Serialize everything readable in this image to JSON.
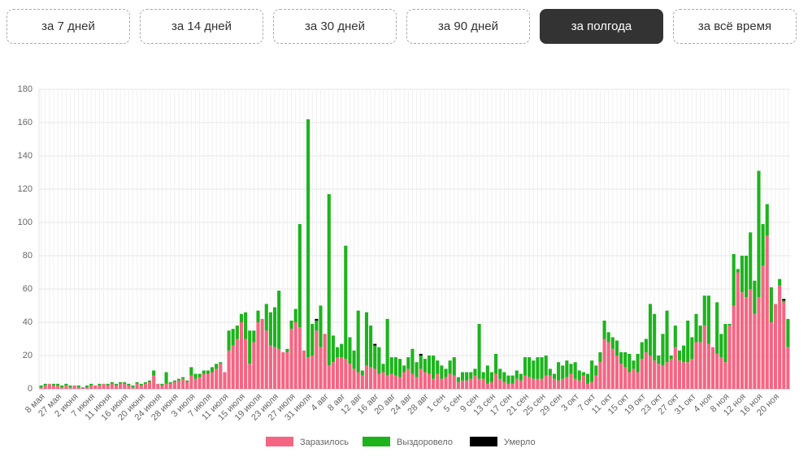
{
  "buttons": [
    "за 7 дней",
    "за 14 дней",
    "за 30 дней",
    "за 90 дней",
    "за полгода",
    "за всё время"
  ],
  "active_button": 4,
  "chart_data": {
    "type": "stacked_bar",
    "categories": [
      "8 мая",
      null,
      null,
      null,
      "27 мая",
      null,
      null,
      null,
      "2 июня",
      null,
      null,
      null,
      "7 июня",
      null,
      null,
      null,
      "11 июня",
      null,
      null,
      null,
      "16 июня",
      null,
      null,
      null,
      "20 июня",
      null,
      null,
      null,
      "24 июня",
      null,
      null,
      null,
      "28 июня",
      null,
      null,
      null,
      "3 июля",
      null,
      null,
      null,
      "7 июля",
      null,
      null,
      null,
      "11 июля",
      null,
      null,
      null,
      "15 июля",
      null,
      null,
      null,
      "19 июля",
      null,
      null,
      null,
      "23 июля",
      null,
      null,
      null,
      "27 июля",
      null,
      null,
      null,
      "31 июля",
      null,
      null,
      null,
      "4 авг",
      null,
      null,
      null,
      "8 авг",
      null,
      null,
      null,
      "12 авг",
      null,
      null,
      null,
      "16 авг",
      null,
      null,
      null,
      "20 авг",
      null,
      null,
      null,
      "24 авг",
      null,
      null,
      null,
      "28 авг",
      null,
      null,
      null,
      "1 сен",
      null,
      null,
      null,
      "5 сен",
      null,
      null,
      null,
      "9 сен",
      null,
      null,
      null,
      "13 сен",
      null,
      null,
      null,
      "17 сен",
      null,
      null,
      null,
      "21 сен",
      null,
      null,
      null,
      "25 сен",
      null,
      null,
      null,
      "29 сен",
      null,
      null,
      null,
      "3 окт",
      null,
      null,
      null,
      "7 окт",
      null,
      null,
      null,
      "11 окт",
      null,
      null,
      null,
      "15 окт",
      null,
      null,
      null,
      "19 окт",
      null,
      null,
      null,
      "23 окт",
      null,
      null,
      null,
      "27 окт",
      null,
      null,
      null,
      "31 окт",
      null,
      null,
      null,
      "4 ноя",
      null,
      null,
      null,
      "8 ноя",
      null,
      null,
      null,
      "12 ноя",
      null,
      null,
      null,
      "16 ноя",
      null,
      null,
      null,
      "20 ноя",
      null,
      null,
      null
    ],
    "series": [
      {
        "name": "Заразилось",
        "color": "#f56583",
        "values": [
          1,
          2,
          3,
          2,
          2,
          1,
          2,
          1,
          2,
          1,
          1,
          1,
          2,
          2,
          2,
          3,
          2,
          3,
          2,
          3,
          3,
          2,
          1,
          3,
          2,
          3,
          4,
          8,
          3,
          2,
          3,
          3,
          4,
          5,
          6,
          4,
          8,
          6,
          7,
          9,
          9,
          10,
          12,
          15,
          10,
          23,
          26,
          30,
          40,
          30,
          15,
          28,
          40,
          42,
          35,
          26,
          25,
          24,
          22,
          22,
          36,
          40,
          37,
          23,
          19,
          20,
          35,
          25,
          33,
          14,
          16,
          19,
          19,
          18,
          15,
          12,
          10,
          8,
          14,
          13,
          12,
          9,
          10,
          8,
          9,
          8,
          7,
          10,
          12,
          9,
          7,
          12,
          10,
          9,
          6,
          9,
          6,
          7,
          9,
          8,
          4,
          5,
          5,
          6,
          8,
          6,
          6,
          3,
          4,
          9,
          6,
          4,
          3,
          3,
          6,
          5,
          8,
          7,
          6,
          6,
          6,
          8,
          8,
          6,
          5,
          6,
          7,
          9,
          6,
          5,
          8,
          3,
          4,
          8,
          16,
          30,
          28,
          24,
          20,
          15,
          13,
          10,
          12,
          10,
          18,
          22,
          20,
          17,
          15,
          14,
          16,
          18,
          25,
          17,
          16,
          16,
          18,
          28,
          28,
          38,
          27,
          25,
          21,
          19,
          16,
          38,
          50,
          70,
          58,
          55,
          60,
          45,
          55,
          74,
          92,
          40,
          51,
          62,
          52,
          25
        ]
      },
      {
        "name": "Выздоровело",
        "color": "#1db31d",
        "values": [
          1,
          1,
          0,
          1,
          1,
          1,
          1,
          1,
          0,
          1,
          0,
          1,
          1,
          0,
          1,
          0,
          1,
          1,
          1,
          1,
          1,
          1,
          1,
          1,
          1,
          1,
          1,
          3,
          0,
          1,
          7,
          1,
          1,
          1,
          1,
          1,
          5,
          3,
          2,
          2,
          2,
          3,
          3,
          1,
          0,
          12,
          10,
          8,
          5,
          16,
          20,
          7,
          7,
          0,
          16,
          20,
          24,
          35,
          0,
          2,
          5,
          8,
          62,
          0,
          143,
          19,
          6,
          25,
          0,
          103,
          16,
          6,
          8,
          68,
          16,
          11,
          37,
          3,
          32,
          25,
          14,
          16,
          5,
          34,
          10,
          11,
          11,
          4,
          7,
          15,
          9,
          8,
          8,
          11,
          14,
          8,
          8,
          5,
          8,
          11,
          3,
          5,
          5,
          4,
          4,
          33,
          4,
          11,
          6,
          12,
          6,
          6,
          5,
          5,
          5,
          4,
          11,
          12,
          11,
          13,
          13,
          12,
          4,
          3,
          11,
          8,
          10,
          6,
          10,
          6,
          2,
          6,
          13,
          6,
          6,
          11,
          6,
          7,
          9,
          7,
          9,
          11,
          5,
          11,
          10,
          8,
          31,
          28,
          5,
          19,
          31,
          2,
          13,
          6,
          10,
          25,
          13,
          17,
          10,
          18,
          29,
          0,
          31,
          14,
          23,
          1,
          31,
          2,
          22,
          25,
          34,
          20,
          76,
          25,
          19,
          21,
          0,
          4,
          1,
          17
        ]
      },
      {
        "name": "Умерло",
        "color": "#000000",
        "values": [
          0,
          0,
          0,
          0,
          0,
          0,
          0,
          0,
          0,
          0,
          0,
          0,
          0,
          0,
          0,
          0,
          0,
          0,
          0,
          0,
          0,
          0,
          0,
          0,
          0,
          0,
          0,
          0,
          0,
          0,
          0,
          0,
          0,
          0,
          0,
          0,
          0,
          0,
          0,
          0,
          0,
          0,
          0,
          0,
          0,
          0,
          0,
          0,
          0,
          0,
          0,
          0,
          0,
          0,
          0,
          0,
          0,
          0,
          0,
          0,
          0,
          0,
          0,
          0,
          0,
          0,
          1,
          0,
          0,
          0,
          0,
          0,
          0,
          0,
          0,
          0,
          0,
          0,
          0,
          0,
          1,
          0,
          0,
          0,
          0,
          0,
          0,
          0,
          0,
          0,
          0,
          1,
          0,
          0,
          0,
          0,
          0,
          0,
          0,
          0,
          0,
          0,
          0,
          0,
          0,
          0,
          0,
          0,
          0,
          0,
          0,
          0,
          0,
          0,
          0,
          0,
          0,
          0,
          0,
          0,
          0,
          0,
          0,
          0,
          0,
          0,
          0,
          0,
          0,
          0,
          0,
          0,
          0,
          0,
          0,
          0,
          0,
          0,
          0,
          0,
          0,
          0,
          0,
          0,
          0,
          0,
          0,
          0,
          0,
          0,
          0,
          0,
          0,
          0,
          0,
          0,
          0,
          0,
          0,
          0,
          0,
          0,
          0,
          0,
          0,
          0,
          0,
          0,
          0,
          0,
          0,
          0,
          0,
          0,
          0,
          0,
          0,
          0,
          1,
          0
        ]
      }
    ],
    "ylim": [
      0,
      180
    ],
    "yticks": [
      0,
      20,
      40,
      60,
      80,
      100,
      120,
      140,
      160,
      180
    ],
    "grid": true,
    "legend": "bottom"
  }
}
